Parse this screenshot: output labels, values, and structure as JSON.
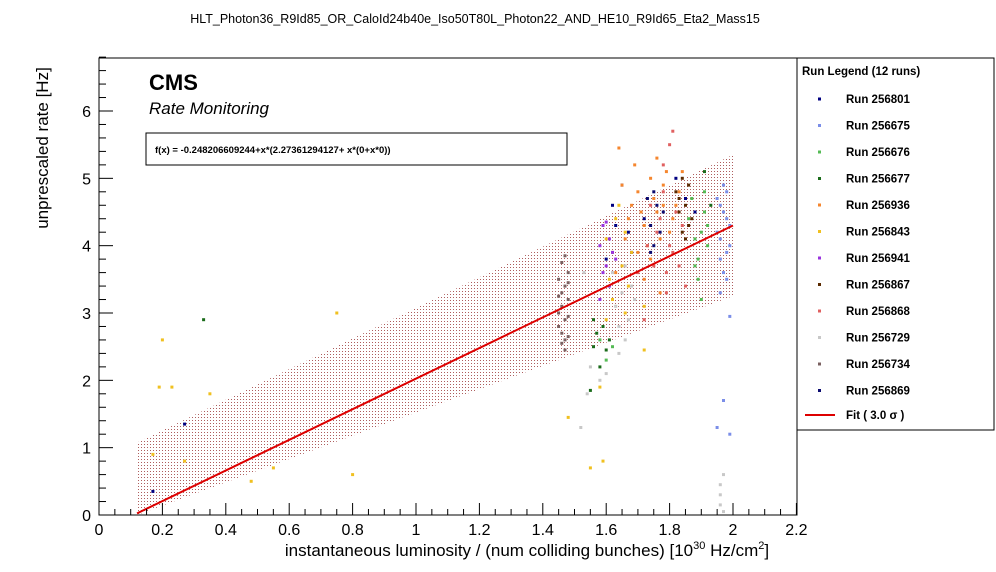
{
  "chart_data": {
    "type": "scatter",
    "title": "HLT_Photon36_R9Id85_OR_CaloId24b40e_Iso50T80L_Photon22_AND_HE10_R9Id65_Eta2_Mass15",
    "xlabel_main": "instantaneous luminosity / (num colliding bunches) [10",
    "xlabel_exp": "30",
    "xlabel_unit": " Hz/cm",
    "xlabel_unit_exp": "2",
    "xlabel_close": "]",
    "ylabel": "unprescaled rate [Hz]",
    "xlim": [
      0,
      2.2
    ],
    "ylim": [
      0,
      6.8
    ],
    "x_ticks": [
      "0",
      "0.2",
      "0.4",
      "0.6",
      "0.8",
      "1",
      "1.2",
      "1.4",
      "1.6",
      "1.8",
      "2",
      "2.2"
    ],
    "y_ticks": [
      "0",
      "1",
      "2",
      "3",
      "4",
      "5",
      "6"
    ],
    "cms_label": "CMS",
    "subtitle": "Rate Monitoring",
    "formula": "f(x) = -0.248206609244+x*(2.27361294127+ x*(0+x*0))",
    "fit": {
      "intercept": -0.248206609244,
      "slope": 2.27361294127,
      "x_range": [
        0.12,
        2.0
      ],
      "band": 1.05,
      "color": "#dd0000"
    },
    "legend_title": "Run Legend (12 runs)",
    "fit_label": "Fit ( 3.0  σ )",
    "series": [
      {
        "name": "Run 256801",
        "color": "#000080",
        "points": [
          [
            1.63,
            4.3
          ],
          [
            1.62,
            4.6
          ],
          [
            1.65,
            4.9
          ],
          [
            1.67,
            4.2
          ],
          [
            1.68,
            3.9
          ],
          [
            1.82,
            5.0
          ],
          [
            1.85,
            4.7
          ],
          [
            1.72,
            4.4
          ],
          [
            1.88,
            4.5
          ],
          [
            1.6,
            3.8
          ],
          [
            0.17,
            0.35
          ],
          [
            0.27,
            1.35
          ]
        ]
      },
      {
        "name": "Run 256675",
        "color": "#7b8ee8",
        "points": [
          [
            1.96,
            4.1
          ],
          [
            1.97,
            4.5
          ],
          [
            1.98,
            4.8
          ],
          [
            1.96,
            3.8
          ],
          [
            1.98,
            3.5
          ],
          [
            1.99,
            4.3
          ],
          [
            1.97,
            4.9
          ],
          [
            1.95,
            4.2
          ],
          [
            1.98,
            3.9
          ],
          [
            1.96,
            4.6
          ],
          [
            1.99,
            4.0
          ],
          [
            1.97,
            3.6
          ],
          [
            1.95,
            4.7
          ],
          [
            1.98,
            4.4
          ],
          [
            1.96,
            3.3
          ],
          [
            1.99,
            2.95
          ],
          [
            1.97,
            1.7
          ],
          [
            1.95,
            1.3
          ],
          [
            1.99,
            1.2
          ]
        ]
      },
      {
        "name": "Run 256676",
        "color": "#55bb55",
        "points": [
          [
            1.86,
            4.4
          ],
          [
            1.88,
            4.1
          ],
          [
            1.87,
            4.7
          ],
          [
            1.89,
            3.8
          ],
          [
            1.9,
            4.2
          ],
          [
            1.91,
            4.5
          ],
          [
            1.89,
            3.5
          ],
          [
            1.92,
            4.0
          ],
          [
            1.88,
            3.7
          ],
          [
            1.91,
            4.8
          ],
          [
            1.9,
            3.2
          ],
          [
            1.92,
            4.3
          ],
          [
            1.58,
            2.6
          ],
          [
            1.6,
            2.3
          ],
          [
            1.62,
            2.5
          ]
        ]
      },
      {
        "name": "Run 256677",
        "color": "#1a6b1a",
        "points": [
          [
            1.56,
            2.5
          ],
          [
            1.57,
            2.7
          ],
          [
            1.58,
            2.2
          ],
          [
            1.59,
            2.8
          ],
          [
            1.61,
            2.6
          ],
          [
            1.56,
            2.9
          ],
          [
            1.6,
            2.45
          ],
          [
            0.33,
            2.9
          ],
          [
            1.55,
            1.85
          ],
          [
            1.93,
            4.6
          ],
          [
            1.91,
            5.1
          ]
        ]
      },
      {
        "name": "Run 256936",
        "color": "#f5862e",
        "points": [
          [
            1.7,
            4.8
          ],
          [
            1.72,
            4.3
          ],
          [
            1.74,
            5.0
          ],
          [
            1.76,
            4.5
          ],
          [
            1.78,
            4.9
          ],
          [
            1.8,
            4.2
          ],
          [
            1.82,
            4.6
          ],
          [
            1.73,
            4.0
          ],
          [
            1.75,
            4.7
          ],
          [
            1.77,
            4.1
          ],
          [
            1.79,
            5.1
          ],
          [
            1.71,
            4.5
          ],
          [
            1.81,
            4.4
          ],
          [
            1.68,
            4.6
          ],
          [
            1.66,
            4.1
          ],
          [
            1.69,
            5.2
          ],
          [
            1.74,
            3.8
          ],
          [
            1.78,
            4.6
          ],
          [
            1.83,
            4.8
          ],
          [
            1.65,
            4.9
          ],
          [
            1.67,
            4.4
          ],
          [
            1.84,
            5.1
          ],
          [
            1.64,
            5.45
          ],
          [
            1.76,
            5.3
          ],
          [
            1.72,
            3.5
          ],
          [
            1.77,
            3.3
          ],
          [
            1.63,
            3.6
          ],
          [
            1.7,
            3.9
          ]
        ]
      },
      {
        "name": "Run 256843",
        "color": "#f0c020",
        "points": [
          [
            1.6,
            4.1
          ],
          [
            1.62,
            3.9
          ],
          [
            1.63,
            4.4
          ],
          [
            1.65,
            3.7
          ],
          [
            1.66,
            4.2
          ],
          [
            1.61,
            3.5
          ],
          [
            1.64,
            4.6
          ],
          [
            1.67,
            3.4
          ],
          [
            1.62,
            3.2
          ],
          [
            1.68,
            3.9
          ],
          [
            1.6,
            2.9
          ],
          [
            1.66,
            3.0
          ],
          [
            1.72,
            3.1
          ],
          [
            1.58,
            1.9
          ],
          [
            0.19,
            1.9
          ],
          [
            0.23,
            1.9
          ],
          [
            0.2,
            2.6
          ],
          [
            0.17,
            0.9
          ],
          [
            0.55,
            0.7
          ],
          [
            0.75,
            3.0
          ],
          [
            0.48,
            0.5
          ],
          [
            0.8,
            0.6
          ],
          [
            1.55,
            0.7
          ],
          [
            1.59,
            0.8
          ],
          [
            1.48,
            1.45
          ],
          [
            1.72,
            2.45
          ],
          [
            0.27,
            0.8
          ],
          [
            0.35,
            1.8
          ]
        ]
      },
      {
        "name": "Run 256941",
        "color": "#9933dd",
        "points": [
          [
            1.58,
            4.0
          ],
          [
            1.59,
            4.3
          ],
          [
            1.6,
            3.7
          ],
          [
            1.61,
            4.1
          ],
          [
            1.62,
            3.9
          ],
          [
            1.6,
            4.35
          ],
          [
            1.59,
            3.6
          ],
          [
            1.63,
            3.8
          ],
          [
            1.61,
            3.4
          ],
          [
            1.58,
            3.2
          ]
        ]
      },
      {
        "name": "Run 256867",
        "color": "#5a2a00",
        "points": [
          [
            1.82,
            4.8
          ],
          [
            1.83,
            4.5
          ],
          [
            1.84,
            4.2
          ],
          [
            1.85,
            4.6
          ],
          [
            1.86,
            4.9
          ],
          [
            1.87,
            4.4
          ],
          [
            1.84,
            5.0
          ],
          [
            1.86,
            4.3
          ],
          [
            1.85,
            4.1
          ],
          [
            1.83,
            4.7
          ]
        ]
      },
      {
        "name": "Run 256868",
        "color": "#e06060",
        "points": [
          [
            1.74,
            4.6
          ],
          [
            1.76,
            4.2
          ],
          [
            1.78,
            4.8
          ],
          [
            1.8,
            4.0
          ],
          [
            1.82,
            4.5
          ],
          [
            1.84,
            4.3
          ],
          [
            1.75,
            3.7
          ],
          [
            1.79,
            3.6
          ],
          [
            1.81,
            3.9
          ],
          [
            1.77,
            4.4
          ],
          [
            1.73,
            4.0
          ],
          [
            1.83,
            3.7
          ],
          [
            1.78,
            5.2
          ],
          [
            1.8,
            5.5
          ],
          [
            1.79,
            3.3
          ],
          [
            1.7,
            3.6
          ],
          [
            1.85,
            3.4
          ],
          [
            1.72,
            2.9
          ],
          [
            1.81,
            5.7
          ]
        ]
      },
      {
        "name": "Run 256729",
        "color": "#c8c8c8",
        "points": [
          [
            1.63,
            3.1
          ],
          [
            1.64,
            2.8
          ],
          [
            1.66,
            2.6
          ],
          [
            1.65,
            3.3
          ],
          [
            1.67,
            2.9
          ],
          [
            1.68,
            3.4
          ],
          [
            1.62,
            3.6
          ],
          [
            1.64,
            2.4
          ],
          [
            1.69,
            3.2
          ],
          [
            1.66,
            3.7
          ],
          [
            1.55,
            2.2
          ],
          [
            1.58,
            2.0
          ],
          [
            1.6,
            2.1
          ],
          [
            1.54,
            1.8
          ],
          [
            1.52,
            1.3
          ],
          [
            1.96,
            0.15
          ],
          [
            1.96,
            0.3
          ],
          [
            1.97,
            0.05
          ],
          [
            1.96,
            0.45
          ],
          [
            1.97,
            0.6
          ],
          [
            1.53,
            3.6
          ]
        ]
      },
      {
        "name": "Run 256734",
        "color": "#7a6060",
        "points": [
          [
            1.45,
            3.0
          ],
          [
            1.46,
            3.3
          ],
          [
            1.47,
            2.9
          ],
          [
            1.48,
            3.2
          ],
          [
            1.45,
            3.5
          ],
          [
            1.47,
            3.4
          ],
          [
            1.46,
            2.7
          ],
          [
            1.48,
            3.6
          ],
          [
            1.46,
            3.1
          ],
          [
            1.47,
            2.6
          ],
          [
            1.45,
            2.8
          ],
          [
            1.48,
            2.95
          ],
          [
            1.46,
            3.75
          ],
          [
            1.47,
            2.45
          ],
          [
            1.45,
            3.25
          ],
          [
            1.48,
            3.45
          ],
          [
            1.47,
            3.85
          ],
          [
            1.46,
            2.55
          ],
          [
            1.48,
            2.65
          ]
        ]
      },
      {
        "name": "Run 256869",
        "color": "#0b0b70",
        "points": [
          [
            1.74,
            4.3
          ],
          [
            1.76,
            4.6
          ],
          [
            1.75,
            4.0
          ],
          [
            1.78,
            4.5
          ],
          [
            1.73,
            4.7
          ],
          [
            1.77,
            4.2
          ],
          [
            1.75,
            4.8
          ],
          [
            1.74,
            3.9
          ]
        ]
      }
    ]
  }
}
